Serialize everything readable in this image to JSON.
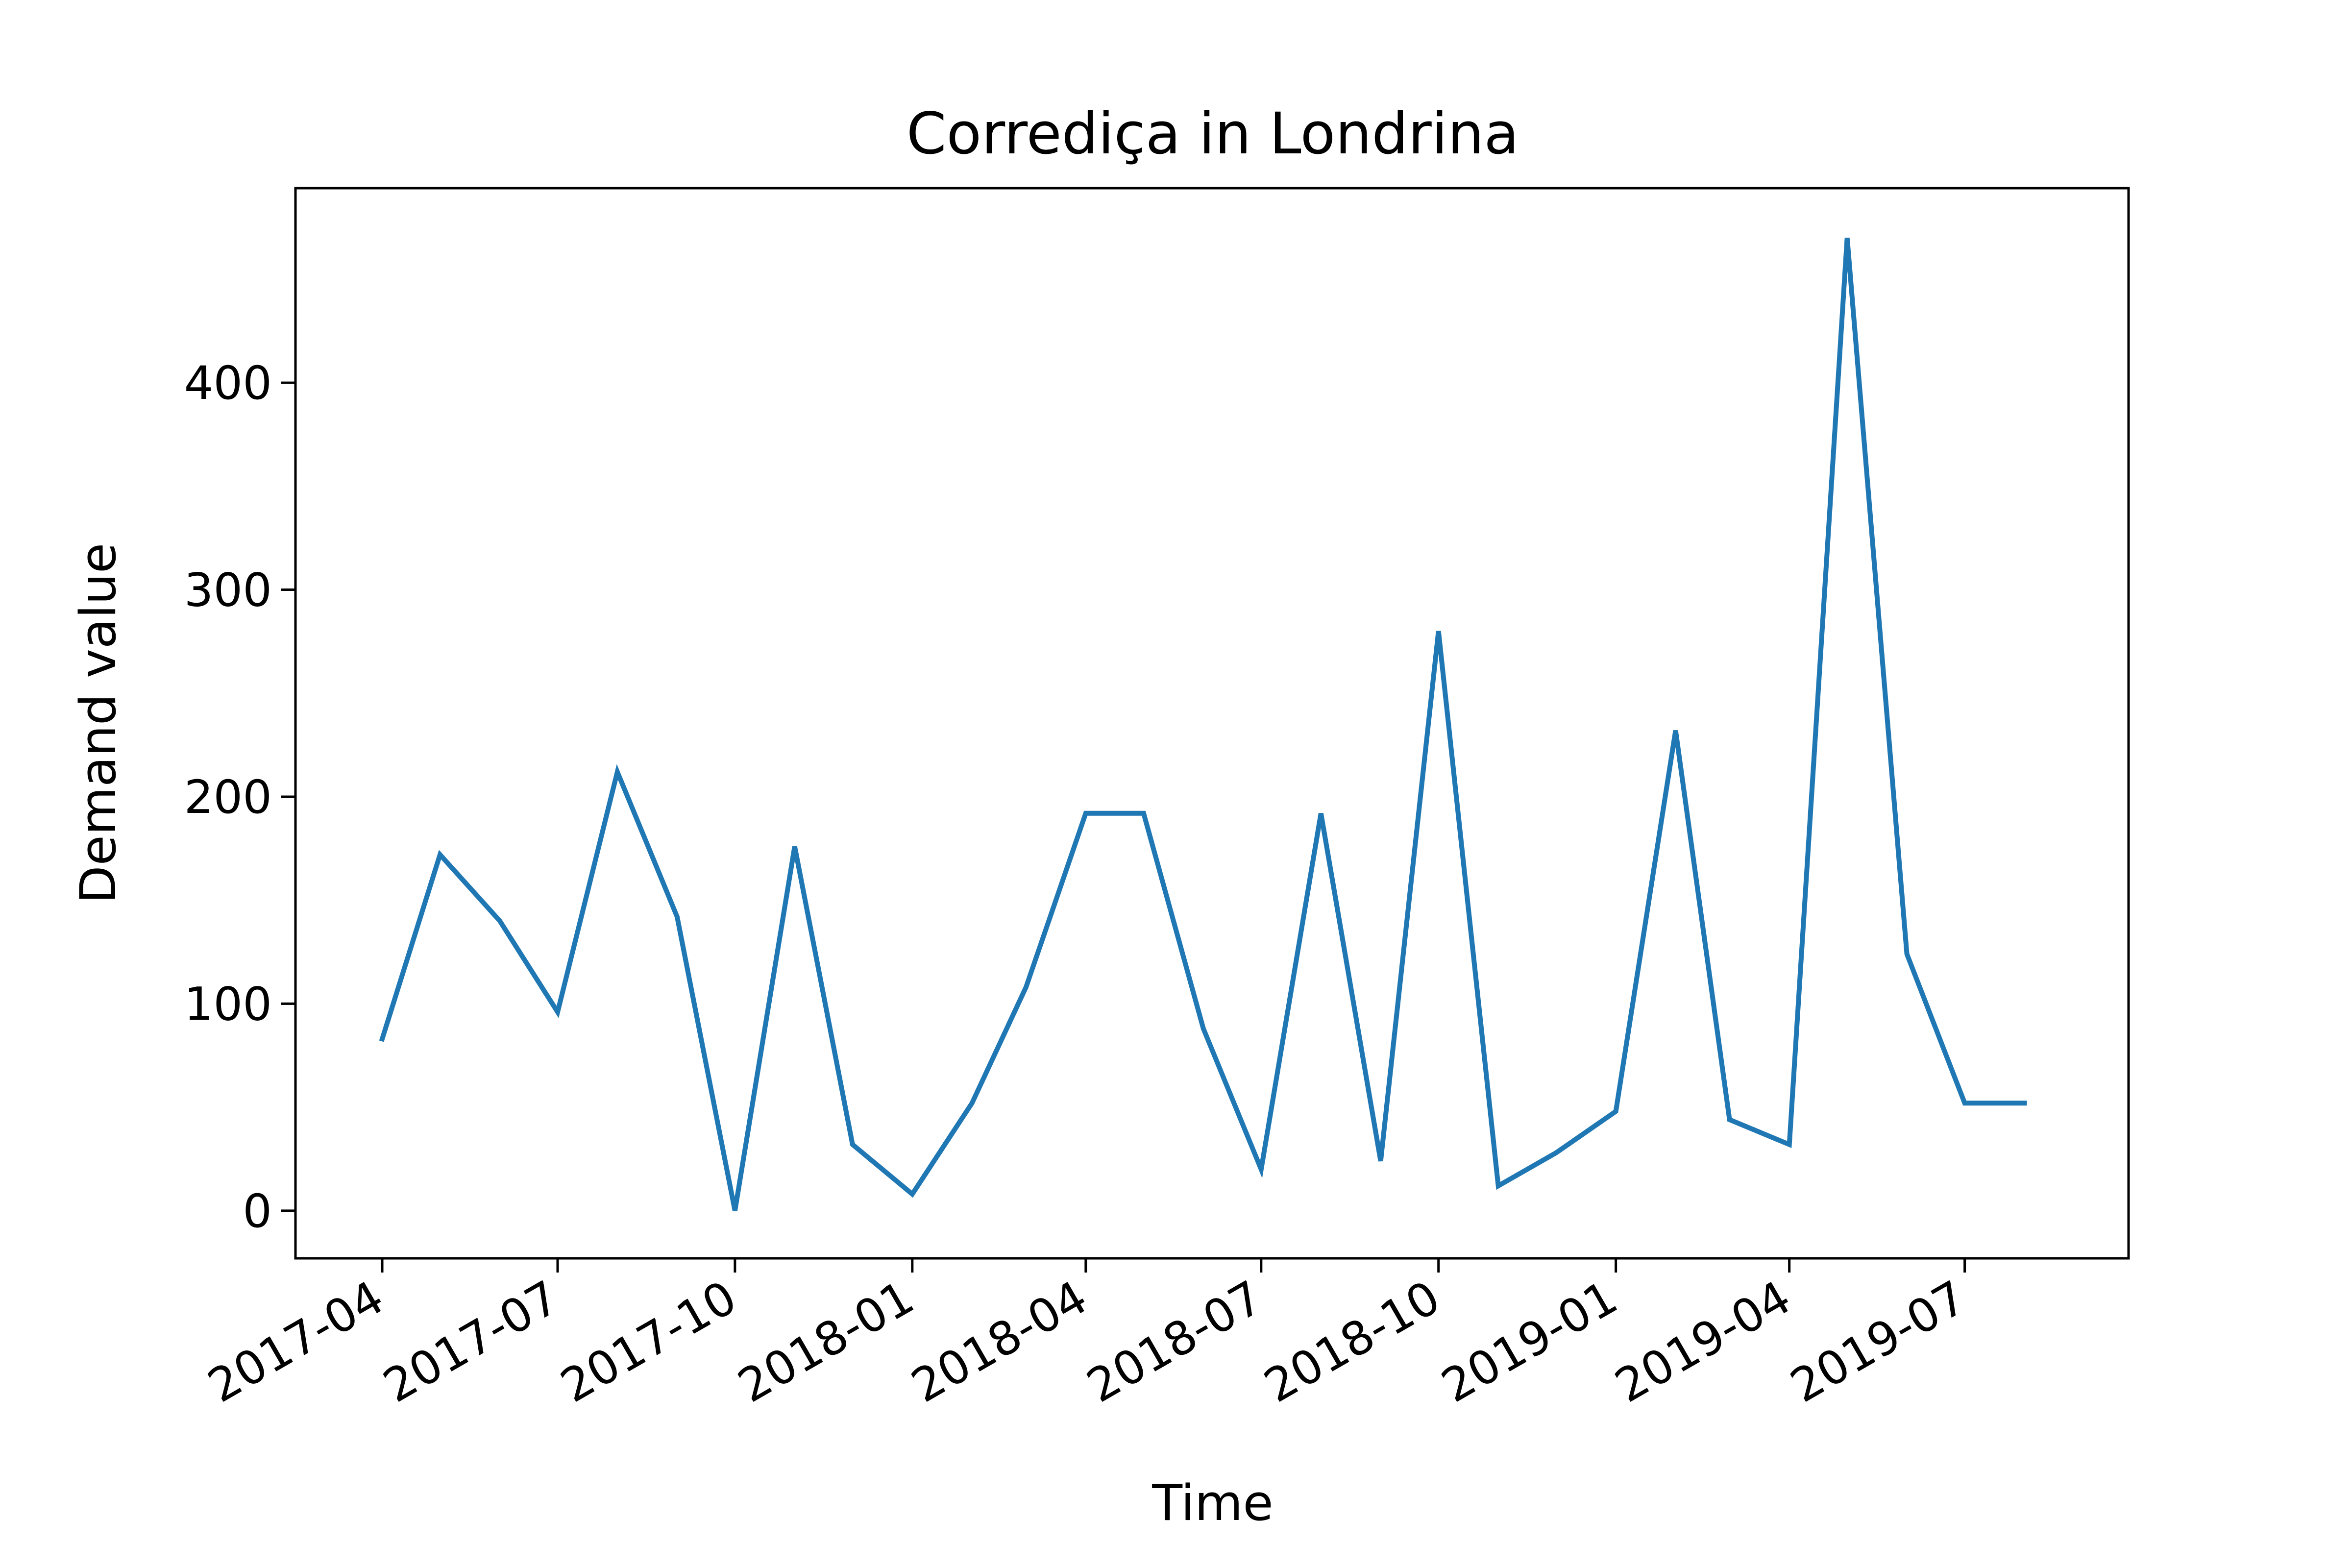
{
  "chart_data": {
    "type": "line",
    "title": "Corrediça in Londrina",
    "xlabel": "Time",
    "ylabel": "Demand value",
    "x_ticks": [
      "2017-04",
      "2017-07",
      "2017-10",
      "2018-01",
      "2018-04",
      "2018-07",
      "2018-10",
      "2019-01",
      "2019-04",
      "2019-07"
    ],
    "y_ticks": [
      "0",
      "100",
      "200",
      "300",
      "400"
    ],
    "ylim": [
      -23,
      494
    ],
    "xlim": [
      "2017-02-15",
      "2019-09-24"
    ],
    "grid": false,
    "legend": "none",
    "series": [
      {
        "color": "#1f77b4",
        "x": [
          "2017-04",
          "2017-05",
          "2017-06",
          "2017-07",
          "2017-08",
          "2017-09",
          "2017-10",
          "2017-11",
          "2017-12",
          "2018-01",
          "2018-02",
          "2018-03",
          "2018-04",
          "2018-05",
          "2018-06",
          "2018-07",
          "2018-08",
          "2018-09",
          "2018-10",
          "2018-11",
          "2018-12",
          "2019-01",
          "2019-02",
          "2019-03",
          "2019-04",
          "2019-05",
          "2019-06",
          "2019-07",
          "2019-08"
        ],
        "values": [
          83,
          172,
          140,
          96,
          212,
          142,
          0,
          176,
          32,
          8,
          52,
          108,
          192,
          192,
          88,
          20,
          192,
          24,
          280,
          12,
          28,
          48,
          232,
          44,
          32,
          470,
          124,
          52,
          52
        ]
      }
    ]
  }
}
